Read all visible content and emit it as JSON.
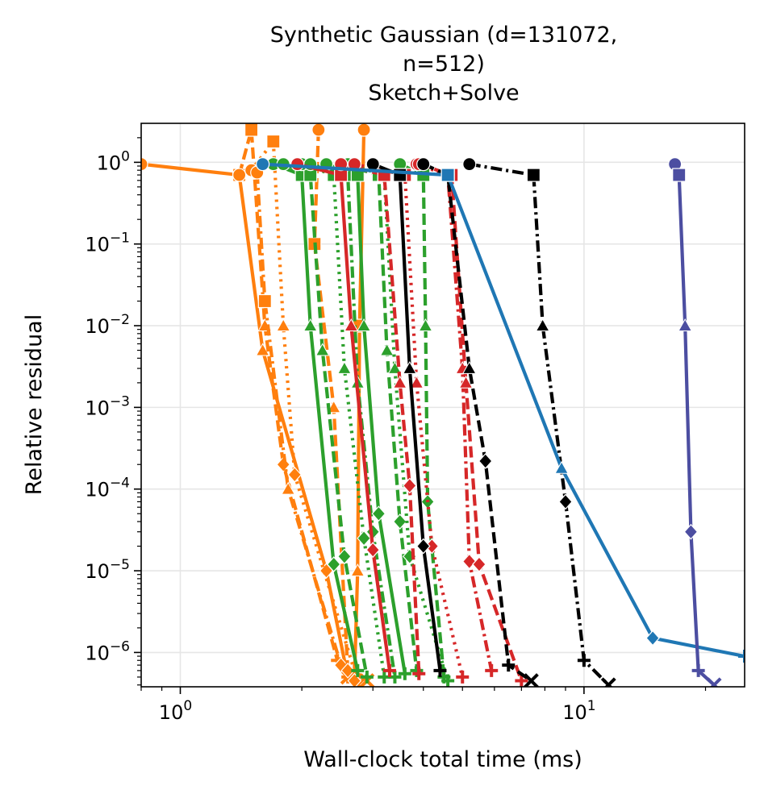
{
  "chart_data": {
    "type": "line",
    "title_lines": [
      "Synthetic Gaussian (d=131072,",
      "n=512)",
      "Sketch+Solve"
    ],
    "xlabel": "Wall-clock total time (ms)",
    "ylabel": "Relative residual",
    "xscale": "log",
    "yscale": "log",
    "xlim": [
      0.8,
      25
    ],
    "ylim": [
      3.8e-07,
      3.0
    ],
    "grid": true,
    "x_ticks": [
      {
        "value": 1,
        "base": "10",
        "exp": "0"
      },
      {
        "value": 10,
        "base": "10",
        "exp": "1"
      }
    ],
    "y_ticks": [
      {
        "value": 1,
        "base": "10",
        "exp": "0"
      },
      {
        "value": 0.1,
        "base": "10",
        "exp": "−1"
      },
      {
        "value": 0.01,
        "base": "10",
        "exp": "−2"
      },
      {
        "value": 0.001,
        "base": "10",
        "exp": "−3"
      },
      {
        "value": 0.0001,
        "base": "10",
        "exp": "−4"
      },
      {
        "value": 1e-05,
        "base": "10",
        "exp": "−5"
      },
      {
        "value": 1e-06,
        "base": "10",
        "exp": "−6"
      }
    ],
    "colors": {
      "orange": "#ff7f0e",
      "green": "#2ca02c",
      "red": "#d62728",
      "black": "#000000",
      "blue": "#1f77b4",
      "purple": "#4c4ea1"
    },
    "series": [
      {
        "name": "orange-solid",
        "color": "orange",
        "style": "solid",
        "x": [
          0.8,
          1.4,
          1.6,
          2.3,
          2.6,
          2.75
        ],
        "y": [
          0.95,
          0.7,
          0.005,
          1e-05,
          5e-07,
          4e-07
        ]
      },
      {
        "name": "orange-dash",
        "color": "orange",
        "style": "dash",
        "x": [
          1.4,
          1.5,
          1.62,
          1.8,
          2.45,
          2.6
        ],
        "y": [
          0.7,
          2.5,
          0.01,
          0.0002,
          8e-07,
          5e-07
        ]
      },
      {
        "name": "orange-dot",
        "color": "orange",
        "style": "dot",
        "x": [
          1.5,
          1.7,
          1.8,
          1.92,
          2.7,
          2.9
        ],
        "y": [
          0.8,
          1.8,
          0.01,
          0.00015,
          6e-07,
          4.5e-07
        ]
      },
      {
        "name": "orange-dashdot",
        "color": "orange",
        "style": "dashdot",
        "x": [
          1.55,
          1.62,
          1.85,
          2.5,
          2.7
        ],
        "y": [
          0.75,
          0.02,
          0.0001,
          7e-07,
          5e-07
        ]
      },
      {
        "name": "orange-steep-1",
        "color": "orange",
        "style": "dash",
        "x": [
          2.2,
          2.15,
          2.4,
          2.6
        ],
        "y": [
          2.5,
          0.1,
          0.001,
          6e-07
        ]
      },
      {
        "name": "orange-steep-2",
        "color": "orange",
        "style": "solid",
        "x": [
          2.85,
          2.78,
          2.75,
          2.7
        ],
        "y": [
          2.5,
          0.01,
          1e-05,
          4.5e-07
        ]
      },
      {
        "name": "green-1",
        "color": "green",
        "style": "solid",
        "x": [
          1.7,
          2.0,
          2.1,
          2.4,
          2.75
        ],
        "y": [
          0.95,
          0.7,
          0.01,
          1.2e-05,
          6e-07
        ]
      },
      {
        "name": "green-2",
        "color": "green",
        "style": "dash",
        "x": [
          1.8,
          2.1,
          2.25,
          2.55,
          2.9
        ],
        "y": [
          0.95,
          0.7,
          0.005,
          1.5e-05,
          5e-07
        ]
      },
      {
        "name": "green-3",
        "color": "green",
        "style": "dot",
        "x": [
          2.0,
          2.4,
          2.55,
          2.85,
          3.2
        ],
        "y": [
          0.95,
          0.7,
          0.003,
          2.5e-05,
          5e-07
        ]
      },
      {
        "name": "green-4",
        "color": "green",
        "style": "dashdot",
        "x": [
          2.1,
          2.6,
          2.75,
          3.0,
          3.4
        ],
        "y": [
          0.95,
          0.7,
          0.002,
          3e-05,
          5e-07
        ]
      },
      {
        "name": "green-5",
        "color": "green",
        "style": "solid",
        "x": [
          2.3,
          2.75,
          2.85,
          3.1,
          3.6
        ],
        "y": [
          0.95,
          0.7,
          0.01,
          5e-05,
          5.5e-07
        ]
      },
      {
        "name": "green-6",
        "color": "green",
        "style": "dash",
        "x": [
          2.5,
          3.1,
          3.25,
          3.5,
          3.85
        ],
        "y": [
          0.95,
          0.7,
          0.005,
          4e-05,
          6e-07
        ]
      },
      {
        "name": "green-7",
        "color": "green",
        "style": "dot",
        "x": [
          2.6,
          3.2,
          3.4,
          3.7,
          4.6
        ],
        "y": [
          0.95,
          0.7,
          0.003,
          1.5e-05,
          4.5e-07
        ]
      },
      {
        "name": "green-8",
        "color": "green",
        "style": "dash",
        "x": [
          3.5,
          4.0,
          4.05,
          4.1,
          4.5
        ],
        "y": [
          0.95,
          0.7,
          0.01,
          7e-05,
          5e-07
        ]
      },
      {
        "name": "red-1",
        "color": "red",
        "style": "solid",
        "x": [
          1.95,
          2.5,
          2.65,
          3.0,
          3.3
        ],
        "y": [
          0.95,
          0.7,
          0.01,
          1.8e-05,
          6e-07
        ]
      },
      {
        "name": "red-2",
        "color": "red",
        "style": "dash",
        "x": [
          2.5,
          3.2,
          3.5,
          3.7,
          3.9
        ],
        "y": [
          0.95,
          0.7,
          0.002,
          0.00011,
          5.5e-07
        ]
      },
      {
        "name": "red-3",
        "color": "red",
        "style": "dot",
        "x": [
          2.7,
          3.6,
          3.85,
          4.2,
          5.0
        ],
        "y": [
          0.95,
          0.7,
          0.002,
          2e-05,
          5e-07
        ]
      },
      {
        "name": "red-4",
        "color": "red",
        "style": "dashdot",
        "x": [
          3.85,
          4.6,
          5.0,
          5.2,
          5.9
        ],
        "y": [
          0.95,
          0.7,
          0.003,
          1.3e-05,
          6e-07
        ]
      },
      {
        "name": "red-5",
        "color": "red",
        "style": "dash",
        "x": [
          3.9,
          4.7,
          5.1,
          5.5,
          7.0
        ],
        "y": [
          0.95,
          0.7,
          0.002,
          1.2e-05,
          4.5e-07
        ]
      },
      {
        "name": "black-1",
        "color": "black",
        "style": "solid",
        "x": [
          3.0,
          3.5,
          3.7,
          4.0,
          4.4
        ],
        "y": [
          0.95,
          0.7,
          0.003,
          2e-05,
          6e-07
        ]
      },
      {
        "name": "black-2",
        "color": "black",
        "style": "dash",
        "x": [
          4.0,
          4.6,
          5.2,
          5.7,
          6.5,
          7.4
        ],
        "y": [
          0.95,
          0.7,
          0.003,
          0.00022,
          7e-07,
          4.5e-07
        ]
      },
      {
        "name": "black-3",
        "color": "black",
        "style": "dashdot",
        "x": [
          5.2,
          7.5,
          7.9,
          9.0,
          10.0,
          11.5
        ],
        "y": [
          0.95,
          0.7,
          0.01,
          7e-05,
          8e-07,
          4e-07
        ]
      },
      {
        "name": "blue",
        "color": "blue",
        "style": "solid",
        "x": [
          1.6,
          4.6,
          8.8,
          14.8,
          25
        ],
        "y": [
          0.95,
          0.7,
          0.00018,
          1.5e-06,
          9e-07
        ]
      },
      {
        "name": "purple",
        "color": "purple",
        "style": "solid",
        "x": [
          16.8,
          17.2,
          17.8,
          18.4,
          19.2,
          21.0
        ],
        "y": [
          0.95,
          0.7,
          0.01,
          3e-05,
          6e-07,
          4e-07
        ]
      }
    ]
  }
}
